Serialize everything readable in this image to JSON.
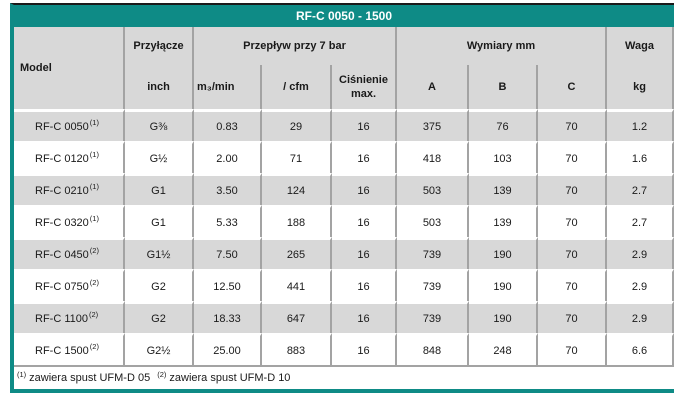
{
  "colors": {
    "teal": "#0E8B86",
    "header_bg": "#D8D8D8",
    "row_alt_bg": "#D8D8D8",
    "row_bg": "#FFFFFF",
    "grid_border": "#A3A3A3",
    "title_text": "#FFFFFF",
    "text": "#1A1A1A"
  },
  "header": {
    "title": "RF-C 0050 - 1500",
    "model": "Model",
    "przylacze": "Przyłącze",
    "inch": "inch",
    "przeplyw": "Przepływ przy 7 bar",
    "m3min": "m₃/min",
    "cfm": "/ cfm",
    "cisnienie_line1": "Ciśnienie",
    "cisnienie_line2": "max.",
    "wymiary": "Wymiary mm",
    "a": "A",
    "b": "B",
    "c": "C",
    "waga": "Waga",
    "kg": "kg"
  },
  "table": {
    "rows": [
      {
        "model": "RF-C 0050",
        "note": "(1)",
        "inch": "G⅜",
        "m3min": "0.83",
        "cfm": "29",
        "cisnienie": "16",
        "a": "375",
        "b": "76",
        "c": "70",
        "kg": "1.2"
      },
      {
        "model": "RF-C 0120",
        "note": "(1)",
        "inch": "G½",
        "m3min": "2.00",
        "cfm": "71",
        "cisnienie": "16",
        "a": "418",
        "b": "103",
        "c": "70",
        "kg": "1.6"
      },
      {
        "model": "RF-C 0210",
        "note": "(1)",
        "inch": "G1",
        "m3min": "3.50",
        "cfm": "124",
        "cisnienie": "16",
        "a": "503",
        "b": "139",
        "c": "70",
        "kg": "2.7"
      },
      {
        "model": "RF-C 0320",
        "note": "(1)",
        "inch": "G1",
        "m3min": "5.33",
        "cfm": "188",
        "cisnienie": "16",
        "a": "503",
        "b": "139",
        "c": "70",
        "kg": "2.7"
      },
      {
        "model": "RF-C 0450",
        "note": "(2)",
        "inch": "G1½",
        "m3min": "7.50",
        "cfm": "265",
        "cisnienie": "16",
        "a": "739",
        "b": "190",
        "c": "70",
        "kg": "2.9"
      },
      {
        "model": "RF-C 0750",
        "note": "(2)",
        "inch": "G2",
        "m3min": "12.50",
        "cfm": "441",
        "cisnienie": "16",
        "a": "739",
        "b": "190",
        "c": "70",
        "kg": "2.9"
      },
      {
        "model": "RF-C 1100",
        "note": "(2)",
        "inch": "G2",
        "m3min": "18.33",
        "cfm": "647",
        "cisnienie": "16",
        "a": "739",
        "b": "190",
        "c": "70",
        "kg": "2.9"
      },
      {
        "model": "RF-C 1500",
        "note": "(2)",
        "inch": "G2½",
        "m3min": "25.00",
        "cfm": "883",
        "cisnienie": "16",
        "a": "848",
        "b": "248",
        "c": "70",
        "kg": "6.6"
      }
    ]
  },
  "footnotes": {
    "sup1": "(1)",
    "text1": "zawiera spust UFM-D 05",
    "sup2": "(2)",
    "text2": "zawiera spust UFM-D 10"
  }
}
